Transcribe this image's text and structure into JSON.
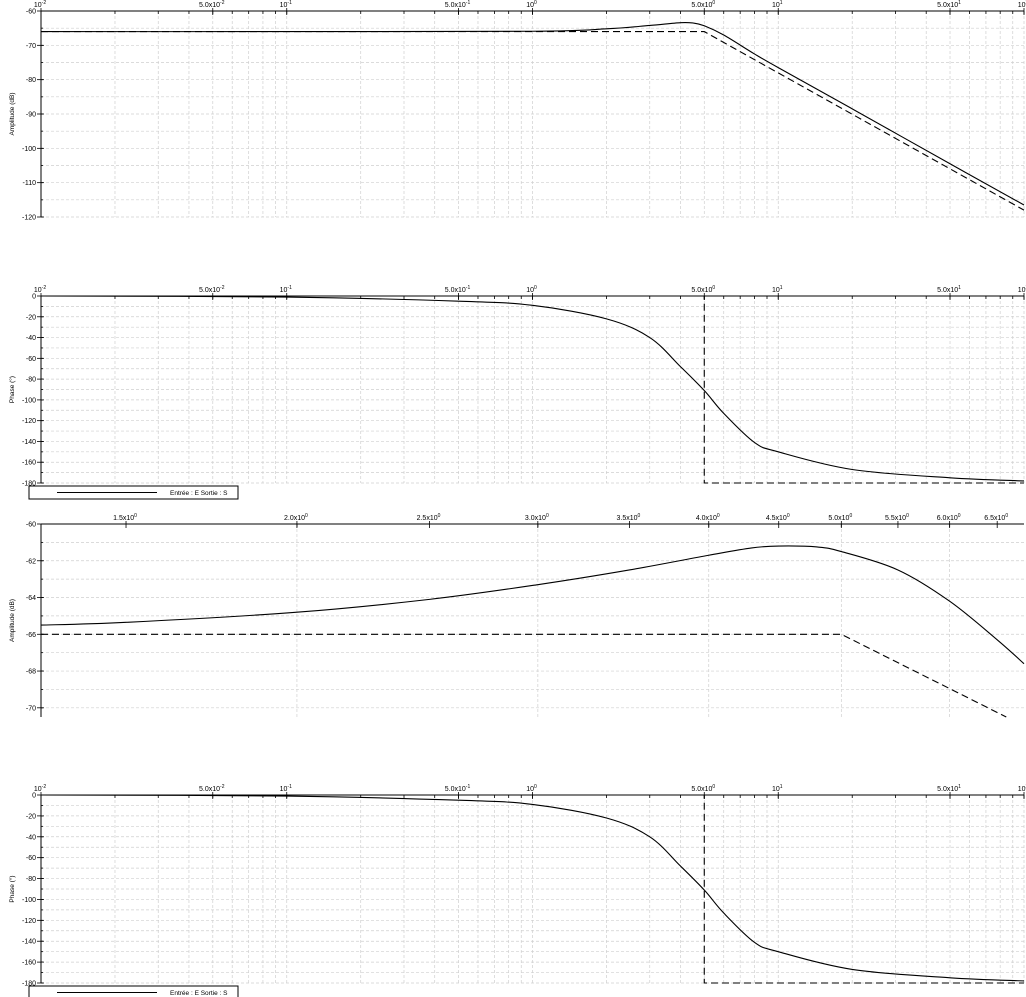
{
  "chart_data": [
    {
      "type": "line",
      "x_scale": "log",
      "xlim": [
        0.01,
        100
      ],
      "ylim": [
        -120,
        -60
      ],
      "ylabel": "Amplitude (dB)",
      "x_tick_labels": [
        {
          "x": 0.01,
          "m": "10",
          "e": "-2"
        },
        {
          "x": 0.05,
          "m": "5.0x10",
          "e": "-2"
        },
        {
          "x": 0.1,
          "m": "10",
          "e": "-1"
        },
        {
          "x": 0.5,
          "m": "5.0x10",
          "e": "-1"
        },
        {
          "x": 1,
          "m": "10",
          "e": "0"
        },
        {
          "x": 5,
          "m": "5.0x10",
          "e": "0"
        },
        {
          "x": 10,
          "m": "10",
          "e": "1"
        },
        {
          "x": 50,
          "m": "5.0x10",
          "e": "1"
        },
        {
          "x": 100,
          "m": "10",
          "e": "2"
        }
      ],
      "y_ticks": [
        -60,
        -70,
        -80,
        -90,
        -100,
        -110,
        -120
      ],
      "y_tick_labels": [
        "-60",
        "-70",
        "-80",
        "-90",
        "-100",
        "-110",
        "-120"
      ],
      "series": [
        {
          "style": "solid",
          "x": [
            0.01,
            0.1,
            1,
            2,
            3,
            4,
            4.5,
            5,
            6,
            8,
            10,
            20,
            50,
            100
          ],
          "y": [
            -66,
            -66,
            -65.9,
            -65.2,
            -64.2,
            -63.4,
            -63.5,
            -64.3,
            -67,
            -72.5,
            -76.5,
            -88.5,
            -104.5,
            -116.5
          ]
        },
        {
          "style": "dashed",
          "x": [
            0.01,
            5,
            100
          ],
          "y": [
            -66,
            -66,
            -118
          ]
        }
      ],
      "grid": true
    },
    {
      "type": "line",
      "x_scale": "log",
      "xlim": [
        0.01,
        100
      ],
      "ylim": [
        -180,
        0
      ],
      "ylabel": "Phase (°)",
      "x_tick_labels": [
        {
          "x": 0.01,
          "m": "10",
          "e": "-2"
        },
        {
          "x": 0.05,
          "m": "5.0x10",
          "e": "-2"
        },
        {
          "x": 0.1,
          "m": "10",
          "e": "-1"
        },
        {
          "x": 0.5,
          "m": "5.0x10",
          "e": "-1"
        },
        {
          "x": 1,
          "m": "10",
          "e": "0"
        },
        {
          "x": 5,
          "m": "5.0x10",
          "e": "0"
        },
        {
          "x": 10,
          "m": "10",
          "e": "1"
        },
        {
          "x": 50,
          "m": "5.0x10",
          "e": "1"
        },
        {
          "x": 100,
          "m": "10",
          "e": "2"
        }
      ],
      "y_ticks": [
        0,
        -20,
        -40,
        -60,
        -80,
        -100,
        -120,
        -140,
        -160,
        -180
      ],
      "y_tick_labels": [
        "0",
        "-20",
        "-40",
        "-60",
        "-80",
        "-100",
        "-120",
        "-140",
        "-160",
        "-180"
      ],
      "series": [
        {
          "style": "solid",
          "name": "Entrée : E Sortie : S",
          "x": [
            0.01,
            0.1,
            0.5,
            1,
            2,
            3,
            4,
            5,
            6,
            8,
            10,
            20,
            50,
            100
          ],
          "y": [
            0,
            -1,
            -5,
            -9,
            -22,
            -40,
            -68,
            -91,
            -113,
            -141,
            -150,
            -167,
            -175,
            -178
          ]
        },
        {
          "style": "dashed",
          "x": [
            0.01,
            5,
            5,
            100
          ],
          "y": [
            0,
            0,
            -180,
            -180
          ]
        }
      ],
      "legend": {
        "label": "Entrée : E Sortie : S",
        "placement": "bottom-left"
      },
      "grid": true
    },
    {
      "type": "line",
      "x_scale": "log",
      "xlim": [
        1.3,
        6.8
      ],
      "ylim": [
        -70.5,
        -60
      ],
      "ylabel": "Amplitude (dB)",
      "x_tick_labels": [
        {
          "x": 1.5,
          "m": "1.5x10",
          "e": "0"
        },
        {
          "x": 2.0,
          "m": "2.0x10",
          "e": "0"
        },
        {
          "x": 2.5,
          "m": "2.5x10",
          "e": "0"
        },
        {
          "x": 3.0,
          "m": "3.0x10",
          "e": "0"
        },
        {
          "x": 3.5,
          "m": "3.5x10",
          "e": "0"
        },
        {
          "x": 4.0,
          "m": "4.0x10",
          "e": "0"
        },
        {
          "x": 4.5,
          "m": "4.5x10",
          "e": "0"
        },
        {
          "x": 5.0,
          "m": "5.0x10",
          "e": "0"
        },
        {
          "x": 5.5,
          "m": "5.5x10",
          "e": "0"
        },
        {
          "x": 6.0,
          "m": "6.0x10",
          "e": "0"
        },
        {
          "x": 6.5,
          "m": "6.5x10",
          "e": "0"
        }
      ],
      "y_ticks": [
        -60,
        -62,
        -64,
        -66,
        -68,
        -70
      ],
      "y_tick_labels": [
        "-60",
        "-62",
        "-64",
        "-66",
        "-68",
        "-70"
      ],
      "series": [
        {
          "style": "solid",
          "x": [
            1.3,
            1.5,
            2.0,
            2.5,
            3.0,
            3.5,
            4.0,
            4.3,
            4.5,
            4.8,
            5.0,
            5.5,
            6.0,
            6.5,
            6.8
          ],
          "y": [
            -65.5,
            -65.35,
            -64.8,
            -64.1,
            -63.3,
            -62.5,
            -61.7,
            -61.3,
            -61.2,
            -61.25,
            -61.5,
            -62.5,
            -64.2,
            -66.3,
            -67.6
          ]
        },
        {
          "style": "dashed",
          "x": [
            1.3,
            5.0,
            6.6
          ],
          "y": [
            -66,
            -66,
            -70.5
          ]
        }
      ],
      "grid": true
    },
    {
      "type": "line",
      "x_scale": "log",
      "xlim": [
        0.01,
        100
      ],
      "ylim": [
        -180,
        0
      ],
      "ylabel": "Phase (°)",
      "x_tick_labels": [
        {
          "x": 0.01,
          "m": "10",
          "e": "-2"
        },
        {
          "x": 0.05,
          "m": "5.0x10",
          "e": "-2"
        },
        {
          "x": 0.1,
          "m": "10",
          "e": "-1"
        },
        {
          "x": 0.5,
          "m": "5.0x10",
          "e": "-1"
        },
        {
          "x": 1,
          "m": "10",
          "e": "0"
        },
        {
          "x": 5,
          "m": "5.0x10",
          "e": "0"
        },
        {
          "x": 10,
          "m": "10",
          "e": "1"
        },
        {
          "x": 50,
          "m": "5.0x10",
          "e": "1"
        },
        {
          "x": 100,
          "m": "10",
          "e": "2"
        }
      ],
      "y_ticks": [
        0,
        -20,
        -40,
        -60,
        -80,
        -100,
        -120,
        -140,
        -160,
        -180
      ],
      "y_tick_labels": [
        "0",
        "-20",
        "-40",
        "-60",
        "-80",
        "-100",
        "-120",
        "-140",
        "-160",
        "-180"
      ],
      "series": [
        {
          "style": "solid",
          "name": "Entrée : E Sortie : S",
          "x": [
            0.01,
            0.1,
            0.5,
            1,
            2,
            3,
            4,
            5,
            6,
            8,
            10,
            20,
            50,
            100
          ],
          "y": [
            0,
            -1,
            -5,
            -9,
            -22,
            -40,
            -68,
            -91,
            -113,
            -141,
            -150,
            -167,
            -175,
            -178
          ]
        },
        {
          "style": "dashed",
          "x": [
            0.01,
            5,
            5,
            100
          ],
          "y": [
            0,
            0,
            -180,
            -180
          ]
        }
      ],
      "legend": {
        "label": "Entrée : E Sortie : S",
        "placement": "bottom-left"
      },
      "grid": true
    }
  ]
}
